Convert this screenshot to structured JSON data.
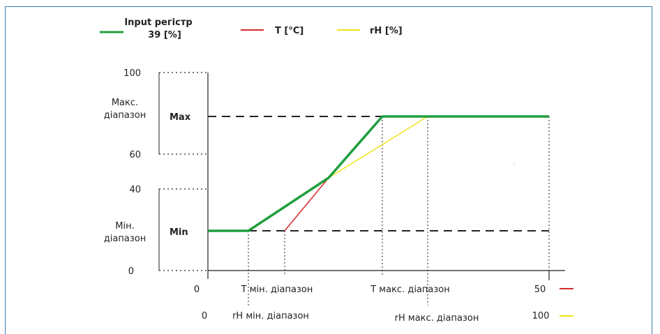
{
  "legend": {
    "input_line1": "Input регістр",
    "input_line2": "39  [%]",
    "t_label": "T [°C]",
    "rh_label": "rH [%]"
  },
  "y_axis": {
    "ticks": [
      "100",
      "60",
      "40",
      "0"
    ],
    "max_range_line1": "Макс.",
    "max_range_line2": "діапазон",
    "min_range_line1": "Мін.",
    "min_range_line2": "діапазон",
    "max_label": "Max",
    "min_label": "Min"
  },
  "x_axis": {
    "t_row": {
      "start": "0",
      "min_label": "T мін. діапазон",
      "max_label": "T макс. діапазон",
      "end": "50"
    },
    "rh_row": {
      "start": "0",
      "min_label": "rH мін. діапазон",
      "max_label": "rH макс. діапазон",
      "end": "100"
    }
  },
  "colors": {
    "input": "#1e9e3e",
    "t": "#d62b2b",
    "rh": "#f2e21a",
    "frame": "#3f7cac"
  }
}
